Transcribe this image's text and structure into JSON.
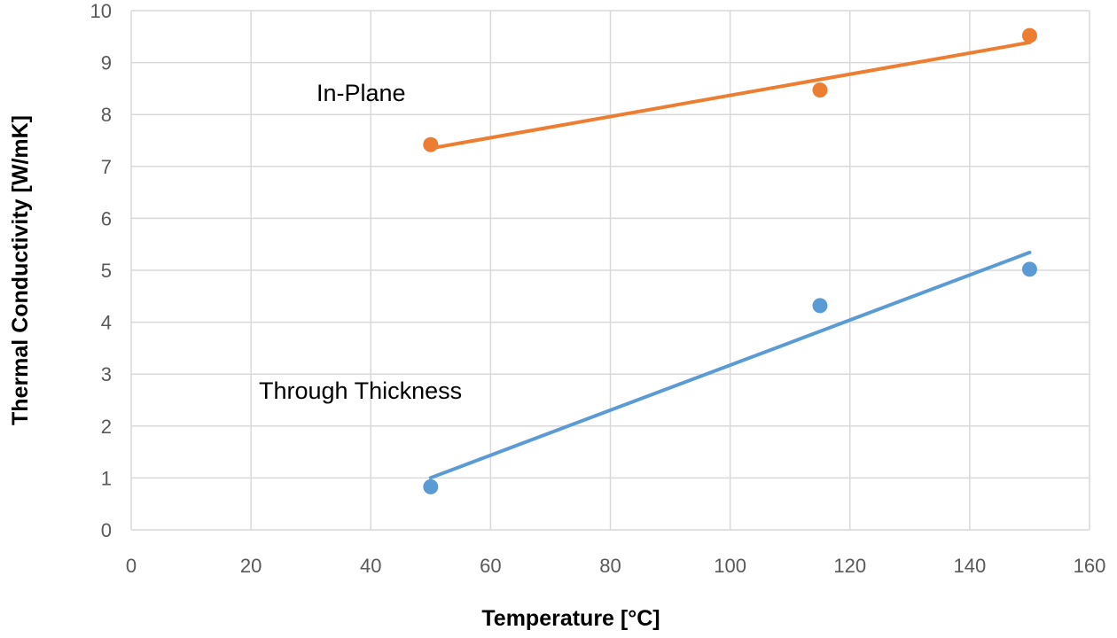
{
  "chart_data": {
    "type": "scatter",
    "title": "",
    "xlabel": "Temperature [°C]",
    "ylabel": "Thermal Conductivity [W/mK]",
    "xlim": [
      0,
      160
    ],
    "ylim": [
      0,
      10
    ],
    "xticks": [
      0,
      20,
      40,
      60,
      80,
      100,
      120,
      140,
      160
    ],
    "yticks": [
      0,
      1,
      2,
      3,
      4,
      5,
      6,
      7,
      8,
      9,
      10
    ],
    "grid": true,
    "series": [
      {
        "name": "In-Plane",
        "color": "#ED7D31",
        "x": [
          50,
          115,
          150
        ],
        "y": [
          7.42,
          8.47,
          9.52
        ],
        "trendline": "linear"
      },
      {
        "name": "Through Thickness",
        "color": "#5B9BD5",
        "x": [
          50,
          115,
          150
        ],
        "y": [
          0.83,
          4.32,
          5.02
        ],
        "trendline": "linear"
      }
    ],
    "annotations": [
      {
        "text": "In-Plane",
        "series": "In-Plane"
      },
      {
        "text": "Through Thickness",
        "series": "Through Thickness"
      }
    ]
  }
}
